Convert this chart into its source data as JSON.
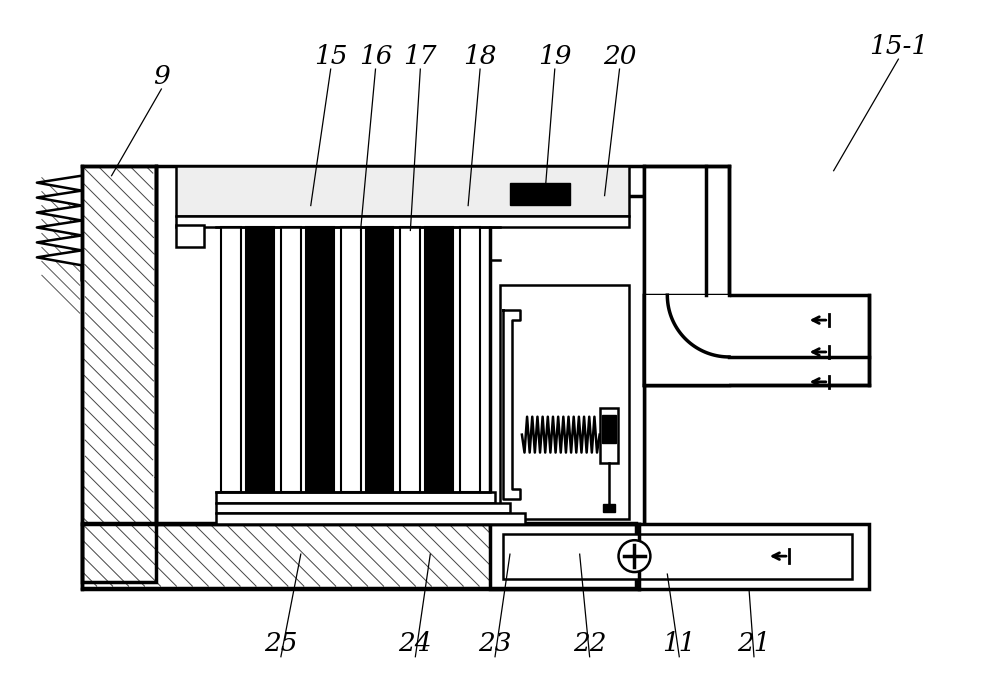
{
  "background": "#ffffff",
  "black": "#000000",
  "gray_light": "#d0d0d0",
  "figsize": [
    10.0,
    6.89
  ],
  "dpi": 100,
  "labels": [
    [
      "9",
      160,
      75,
      110,
      175
    ],
    [
      "15",
      330,
      55,
      310,
      205
    ],
    [
      "16",
      375,
      55,
      360,
      230
    ],
    [
      "17",
      420,
      55,
      410,
      230
    ],
    [
      "18",
      480,
      55,
      468,
      205
    ],
    [
      "19",
      555,
      55,
      545,
      195
    ],
    [
      "20",
      620,
      55,
      605,
      195
    ],
    [
      "15-1",
      900,
      45,
      835,
      170
    ],
    [
      "25",
      280,
      645,
      300,
      555
    ],
    [
      "24",
      415,
      645,
      430,
      555
    ],
    [
      "23",
      495,
      645,
      510,
      555
    ],
    [
      "22",
      590,
      645,
      580,
      555
    ],
    [
      "11",
      680,
      645,
      668,
      575
    ],
    [
      "21",
      755,
      645,
      750,
      590
    ]
  ]
}
